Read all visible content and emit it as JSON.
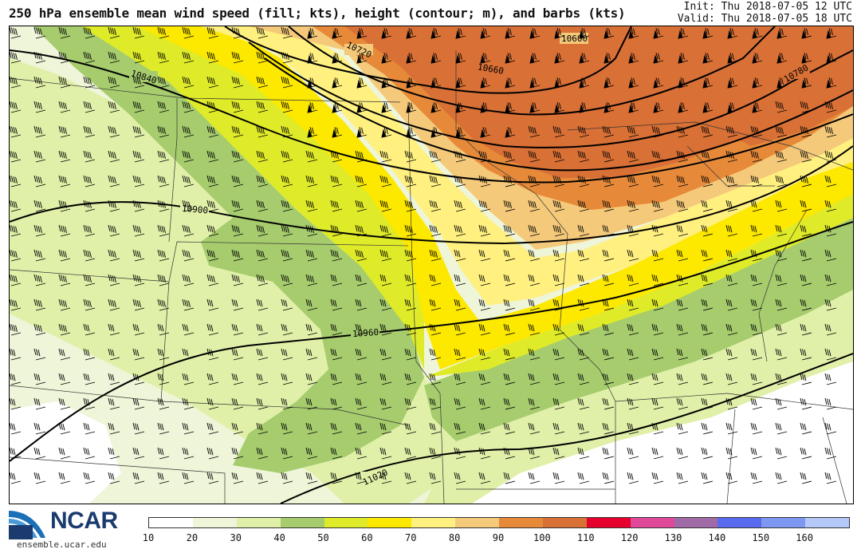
{
  "header": {
    "title": "250 hPa ensemble mean wind speed (fill; kts), height (contour; m), and barbs (kts)",
    "init": "Init: Thu 2018-07-05 12 UTC",
    "valid": "Valid: Thu 2018-07-05 18 UTC"
  },
  "contours": [
    {
      "label": "10600"
    },
    {
      "label": "10660"
    },
    {
      "label": "10720"
    },
    {
      "label": "10780"
    },
    {
      "label": "10840"
    },
    {
      "label": "10900"
    },
    {
      "label": "10960"
    },
    {
      "label": "11020"
    }
  ],
  "colorbar": {
    "unit": "kts",
    "ticks": [
      "10",
      "20",
      "30",
      "40",
      "50",
      "60",
      "70",
      "80",
      "90",
      "100",
      "110",
      "120",
      "130",
      "140",
      "150",
      "160"
    ],
    "colors": [
      "#ffffff",
      "#eef5d8",
      "#e0f0a8",
      "#a6cc6e",
      "#dfeb28",
      "#fde800",
      "#fff080",
      "#f5c97a",
      "#e68a3a",
      "#d97036",
      "#e8002c",
      "#e0489a",
      "#a06aa6",
      "#5a6aee",
      "#7e98f2",
      "#b4c8fa"
    ]
  },
  "logo": {
    "name": "NCAR",
    "url": "ensemble.ucar.edu"
  }
}
